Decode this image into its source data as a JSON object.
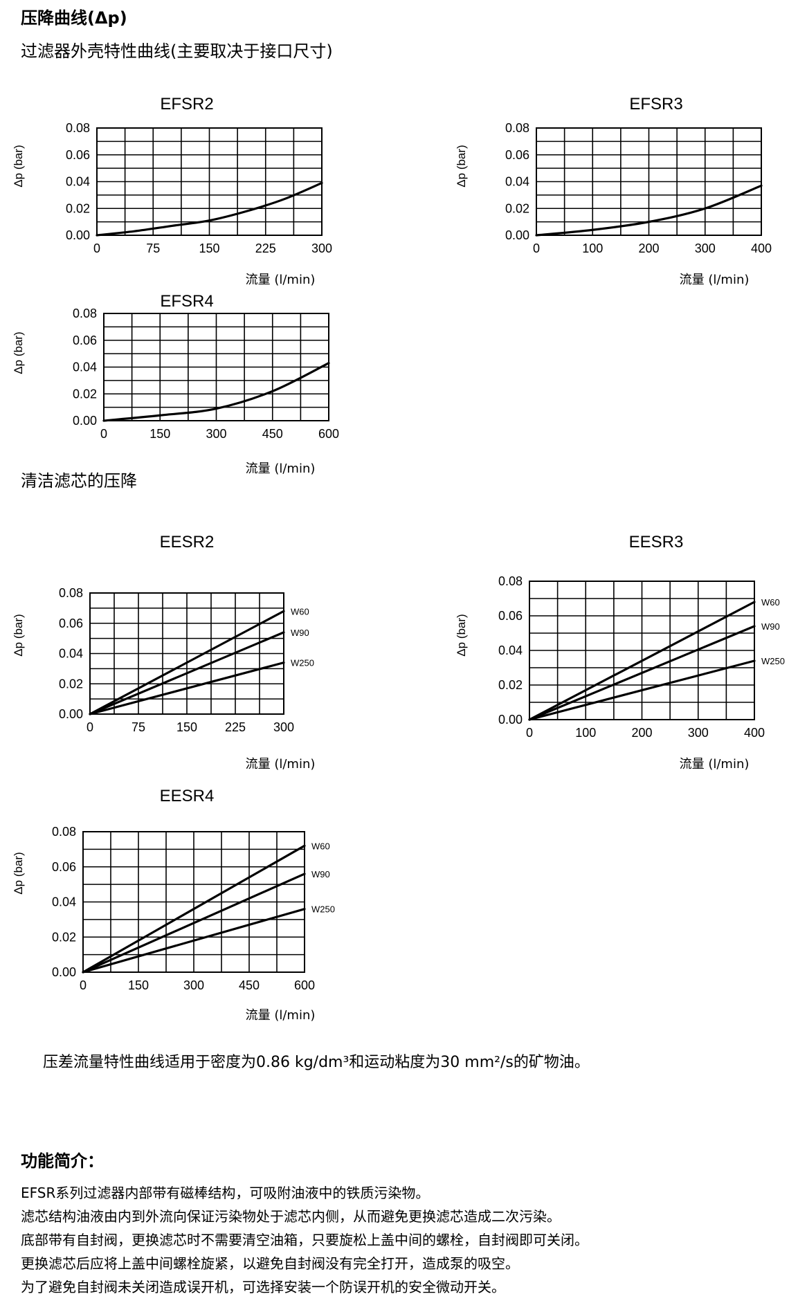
{
  "heading": {
    "title": "压降曲线(Δp)",
    "subtitle": "过滤器外壳特性曲线(主要取决于接口尺寸)"
  },
  "section2_title": "清洁滤芯的压降",
  "note": "压差流量特性曲线适用于密度为0.86 kg/dm³和运动粘度为30 mm²/s的矿物油。",
  "features": {
    "title": "功能简介：",
    "lines": [
      "EFSR系列过滤器内部带有磁棒结构，可吸附油液中的铁质污染物。",
      "滤芯结构油液由内到外流向保证污染物处于滤芯内侧，从而避免更换滤芯造成二次污染。",
      "底部带有自封阀，更换滤芯时不需要清空油箱，只要旋松上盖中间的螺栓，自封阀即可关闭。",
      "更换滤芯后应将上盖中间螺栓旋紧，以避免自封阀没有完全打开，造成泵的吸空。",
      "为了避免自封阀未关闭造成误开机，可选择安装一个防误开机的安全微动开关。"
    ]
  },
  "chart_data": [
    {
      "id": "efsr2",
      "type": "line",
      "title": "EFSR2",
      "xlabel": "流量 (l/min)",
      "ylabel": "Δp (bar)",
      "xlim": [
        0,
        300
      ],
      "ylim": [
        0,
        0.08
      ],
      "xticks": [
        "0",
        "75",
        "150",
        "225",
        "300"
      ],
      "yticks": [
        "0.00",
        "0.02",
        "0.04",
        "0.06",
        "0.08"
      ],
      "grid": true,
      "xdiv": 8,
      "ydiv": 8,
      "series": [
        {
          "name": "",
          "x": [
            0,
            50,
            100,
            150,
            200,
            250,
            300
          ],
          "y": [
            0,
            0.003,
            0.007,
            0.011,
            0.018,
            0.027,
            0.039
          ]
        }
      ]
    },
    {
      "id": "efsr3",
      "type": "line",
      "title": "EFSR3",
      "xlabel": "流量 (l/min)",
      "ylabel": "Δp (bar)",
      "xlim": [
        0,
        400
      ],
      "ylim": [
        0,
        0.08
      ],
      "xticks": [
        "0",
        "100",
        "200",
        "300",
        "400"
      ],
      "yticks": [
        "0.00",
        "0.02",
        "0.04",
        "0.06",
        "0.08"
      ],
      "grid": true,
      "xdiv": 8,
      "ydiv": 8,
      "series": [
        {
          "name": "",
          "x": [
            0,
            100,
            200,
            300,
            400
          ],
          "y": [
            0,
            0.004,
            0.01,
            0.02,
            0.037
          ]
        }
      ]
    },
    {
      "id": "efsr4",
      "type": "line",
      "title": "EFSR4",
      "xlabel": "流量 (l/min)",
      "ylabel": "Δp (bar)",
      "xlim": [
        0,
        600
      ],
      "ylim": [
        0,
        0.08
      ],
      "xticks": [
        "0",
        "150",
        "300",
        "450",
        "600"
      ],
      "yticks": [
        "0.00",
        "0.02",
        "0.04",
        "0.06",
        "0.08"
      ],
      "grid": true,
      "xdiv": 8,
      "ydiv": 8,
      "series": [
        {
          "name": "",
          "x": [
            0,
            150,
            300,
            450,
            600
          ],
          "y": [
            0,
            0.004,
            0.009,
            0.022,
            0.043
          ]
        }
      ]
    },
    {
      "id": "eesr2",
      "type": "line",
      "title": "EESR2",
      "xlabel": "流量 (l/min)",
      "ylabel": "Δp (bar)",
      "xlim": [
        0,
        300
      ],
      "ylim": [
        0,
        0.08
      ],
      "xticks": [
        "0",
        "75",
        "150",
        "225",
        "300"
      ],
      "yticks": [
        "0.00",
        "0.02",
        "0.04",
        "0.06",
        "0.08"
      ],
      "grid": true,
      "xdiv": 8,
      "ydiv": 8,
      "series": [
        {
          "name": "W60",
          "x": [
            0,
            300
          ],
          "y": [
            0,
            0.068
          ]
        },
        {
          "name": "W90",
          "x": [
            0,
            300
          ],
          "y": [
            0,
            0.054
          ]
        },
        {
          "name": "W250",
          "x": [
            0,
            300
          ],
          "y": [
            0,
            0.034
          ]
        }
      ]
    },
    {
      "id": "eesr3",
      "type": "line",
      "title": "EESR3",
      "xlabel": "流量 (l/min)",
      "ylabel": "Δp (bar)",
      "xlim": [
        0,
        400
      ],
      "ylim": [
        0,
        0.08
      ],
      "xticks": [
        "0",
        "100",
        "200",
        "300",
        "400"
      ],
      "yticks": [
        "0.00",
        "0.02",
        "0.04",
        "0.06",
        "0.08"
      ],
      "grid": true,
      "xdiv": 8,
      "ydiv": 8,
      "series": [
        {
          "name": "W60",
          "x": [
            0,
            400
          ],
          "y": [
            0,
            0.068
          ]
        },
        {
          "name": "W90",
          "x": [
            0,
            400
          ],
          "y": [
            0,
            0.054
          ]
        },
        {
          "name": "W250",
          "x": [
            0,
            400
          ],
          "y": [
            0,
            0.034
          ]
        }
      ]
    },
    {
      "id": "eesr4",
      "type": "line",
      "title": "EESR4",
      "xlabel": "流量 (l/min)",
      "ylabel": "Δp (bar)",
      "xlim": [
        0,
        600
      ],
      "ylim": [
        0,
        0.08
      ],
      "xticks": [
        "0",
        "150",
        "300",
        "450",
        "600"
      ],
      "yticks": [
        "0.00",
        "0.02",
        "0.04",
        "0.06",
        "0.08"
      ],
      "grid": true,
      "xdiv": 8,
      "ydiv": 8,
      "series": [
        {
          "name": "W60",
          "x": [
            0,
            600
          ],
          "y": [
            0,
            0.072
          ]
        },
        {
          "name": "W90",
          "x": [
            0,
            600
          ],
          "y": [
            0,
            0.056
          ]
        },
        {
          "name": "W250",
          "x": [
            0,
            600
          ],
          "y": [
            0,
            0.036
          ]
        }
      ]
    }
  ]
}
